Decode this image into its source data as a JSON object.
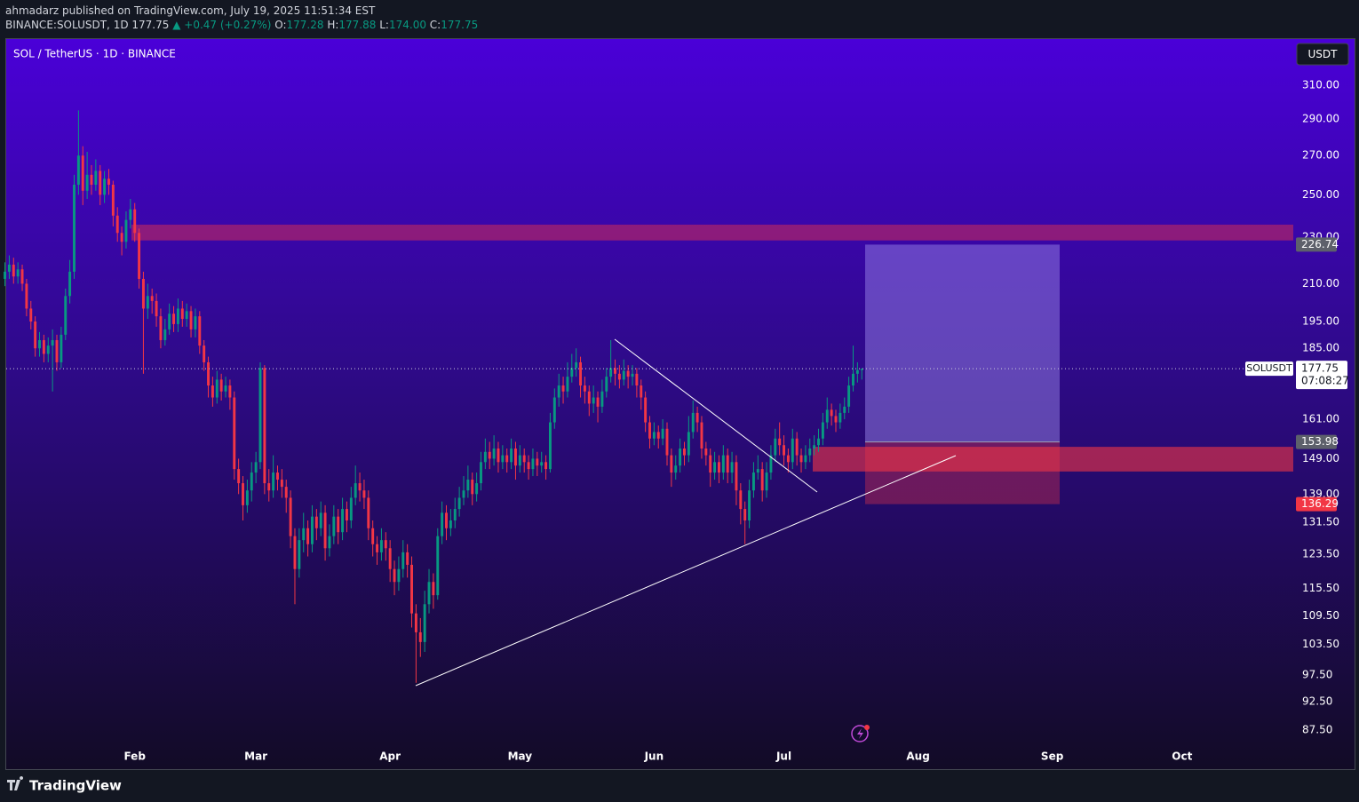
{
  "header": {
    "published": "ahmadarz published on TradingView.com, July 19, 2025 11:51:34 EST",
    "symbol": "BINANCE:SOLUSDT, 1D",
    "last": "177.75",
    "change": "▲ +0.47 (+0.27%)",
    "ohlc": [
      {
        "label": "O:",
        "value": "177.28"
      },
      {
        "label": "H:",
        "value": "177.88"
      },
      {
        "label": "L:",
        "value": "174.00"
      },
      {
        "label": "C:",
        "value": "177.75"
      }
    ]
  },
  "footer": {
    "brand": "TradingView"
  },
  "chart_data": {
    "type": "candlestick",
    "title": "SOL / TetherUS · 1D · BINANCE",
    "currency": "USDT",
    "symbol_label": "SOLUSDT",
    "countdown": "07:08:27",
    "log_scale": true,
    "grid": false,
    "up_color": "#089981",
    "down_color": "#f23645",
    "xlim": [
      1.3,
      298.7
    ],
    "xticks": [
      {
        "value": 31,
        "label": "Feb"
      },
      {
        "value": 59,
        "label": "Mar"
      },
      {
        "value": 90,
        "label": "Apr"
      },
      {
        "value": 120,
        "label": "May"
      },
      {
        "value": 151,
        "label": "Jun"
      },
      {
        "value": 181,
        "label": "Jul"
      },
      {
        "value": 212,
        "label": "Aug"
      },
      {
        "value": 243,
        "label": "Sep"
      },
      {
        "value": 273,
        "label": "Oct"
      }
    ],
    "ylim": [
      85.1,
      339.3
    ],
    "yticks": [
      {
        "value": 310,
        "label": "310.00"
      },
      {
        "value": 290,
        "label": "290.00"
      },
      {
        "value": 270,
        "label": "270.00"
      },
      {
        "value": 250,
        "label": "250.00"
      },
      {
        "value": 230,
        "label": "230.00"
      },
      {
        "value": 210,
        "label": "210.00"
      },
      {
        "value": 195,
        "label": "195.00"
      },
      {
        "value": 185,
        "label": "185.00"
      },
      {
        "value": 161,
        "label": "161.00"
      },
      {
        "value": 149,
        "label": "149.00"
      },
      {
        "value": 139,
        "label": "139.00"
      },
      {
        "value": 131.5,
        "label": "131.50"
      },
      {
        "value": 123.5,
        "label": "123.50"
      },
      {
        "value": 115.5,
        "label": "115.50"
      },
      {
        "value": 109.5,
        "label": "109.50"
      },
      {
        "value": 103.5,
        "label": "103.50"
      },
      {
        "value": 97.5,
        "label": "97.50"
      },
      {
        "value": 92.5,
        "label": "92.50"
      },
      {
        "value": 87.5,
        "label": "87.50"
      }
    ],
    "zones": [
      {
        "from": 228.6,
        "to": 235.8
      },
      {
        "from": 145.3,
        "to": 152.5
      }
    ],
    "position": {
      "target": 226.74,
      "entry": 153.98,
      "stop": 136.29
    },
    "x": [
      1,
      2,
      3,
      4,
      5,
      6,
      7,
      8,
      9,
      10,
      11,
      12,
      13,
      14,
      15,
      16,
      17,
      18,
      19,
      20,
      21,
      22,
      23,
      24,
      25,
      26,
      27,
      28,
      29,
      30,
      31,
      32,
      33,
      34,
      35,
      36,
      37,
      38,
      39,
      40,
      41,
      42,
      43,
      44,
      45,
      46,
      47,
      48,
      49,
      50,
      51,
      52,
      53,
      54,
      55,
      56,
      57,
      58,
      59,
      60,
      61,
      62,
      63,
      64,
      65,
      66,
      67,
      68,
      69,
      70,
      71,
      72,
      73,
      74,
      75,
      76,
      77,
      78,
      79,
      80,
      81,
      82,
      83,
      84,
      85,
      86,
      87,
      88,
      89,
      90,
      91,
      92,
      93,
      94,
      95,
      96,
      97,
      98,
      99,
      100,
      101,
      102,
      103,
      104,
      105,
      106,
      107,
      108,
      109,
      110,
      111,
      112,
      113,
      114,
      115,
      116,
      117,
      118,
      119,
      120,
      121,
      122,
      123,
      124,
      125,
      126,
      127,
      128,
      129,
      130,
      131,
      132,
      133,
      134,
      135,
      136,
      137,
      138,
      139,
      140,
      141,
      142,
      143,
      144,
      145,
      146,
      147,
      148,
      149,
      150,
      151,
      152,
      153,
      154,
      155,
      156,
      157,
      158,
      159,
      160,
      161,
      162,
      163,
      164,
      165,
      166,
      167,
      168,
      169,
      170,
      171,
      172,
      173,
      174,
      175,
      176,
      177,
      178,
      179,
      180,
      181,
      182,
      183,
      184,
      185,
      186,
      187,
      188,
      189,
      190,
      191,
      192,
      193,
      194,
      195,
      196,
      197,
      198,
      199
    ],
    "candles": [
      [
        212,
        219,
        209,
        215
      ],
      [
        215,
        222,
        212,
        218
      ],
      [
        218,
        221,
        210,
        213
      ],
      [
        213,
        219,
        210,
        216
      ],
      [
        216,
        218,
        207,
        210
      ],
      [
        210,
        212,
        197,
        200
      ],
      [
        200,
        203,
        192,
        195
      ],
      [
        195,
        197,
        182,
        185
      ],
      [
        185,
        191,
        182,
        188
      ],
      [
        188,
        190,
        180,
        183
      ],
      [
        183,
        189,
        180,
        186
      ],
      [
        186,
        192,
        170,
        188
      ],
      [
        188,
        190,
        177,
        180
      ],
      [
        180,
        193,
        178,
        190
      ],
      [
        190,
        208,
        188,
        205
      ],
      [
        205,
        220,
        202,
        215
      ],
      [
        215,
        260,
        212,
        255
      ],
      [
        255,
        295,
        250,
        270
      ],
      [
        270,
        275,
        245,
        252
      ],
      [
        252,
        272,
        248,
        260
      ],
      [
        260,
        265,
        250,
        255
      ],
      [
        255,
        268,
        252,
        262
      ],
      [
        262,
        265,
        245,
        250
      ],
      [
        250,
        262,
        246,
        258
      ],
      [
        258,
        263,
        250,
        255
      ],
      [
        255,
        257,
        235,
        240
      ],
      [
        240,
        244,
        228,
        232
      ],
      [
        232,
        235,
        222,
        228
      ],
      [
        228,
        242,
        225,
        238
      ],
      [
        238,
        248,
        234,
        243
      ],
      [
        243,
        246,
        228,
        232
      ],
      [
        232,
        234,
        208,
        212
      ],
      [
        212,
        215,
        176,
        200
      ],
      [
        200,
        210,
        196,
        205
      ],
      [
        205,
        208,
        198,
        203
      ],
      [
        203,
        206,
        193,
        197
      ],
      [
        197,
        200,
        185,
        188
      ],
      [
        188,
        196,
        186,
        192
      ],
      [
        192,
        202,
        190,
        198
      ],
      [
        198,
        201,
        191,
        194
      ],
      [
        194,
        204,
        191,
        200
      ],
      [
        200,
        203,
        193,
        196
      ],
      [
        196,
        202,
        193,
        199
      ],
      [
        199,
        201,
        189,
        192
      ],
      [
        192,
        200,
        189,
        197
      ],
      [
        197,
        199,
        183,
        186
      ],
      [
        186,
        188,
        177,
        180
      ],
      [
        180,
        182,
        168,
        172
      ],
      [
        172,
        175,
        165,
        168
      ],
      [
        168,
        177,
        166,
        174
      ],
      [
        174,
        176,
        167,
        170
      ],
      [
        170,
        175,
        168,
        172
      ],
      [
        172,
        174,
        164,
        168
      ],
      [
        168,
        170,
        143,
        146
      ],
      [
        146,
        149,
        139,
        142
      ],
      [
        142,
        144,
        132,
        136
      ],
      [
        136,
        143,
        134,
        140
      ],
      [
        140,
        148,
        137,
        145
      ],
      [
        145,
        151,
        142,
        148
      ],
      [
        148,
        180,
        146,
        178
      ],
      [
        178,
        179,
        139,
        142
      ],
      [
        142,
        146,
        137,
        140
      ],
      [
        140,
        150,
        138,
        145
      ],
      [
        145,
        147,
        140,
        143
      ],
      [
        143,
        146,
        138,
        141
      ],
      [
        141,
        143,
        134,
        138
      ],
      [
        138,
        140,
        125,
        128
      ],
      [
        128,
        130,
        112,
        120
      ],
      [
        120,
        130,
        118,
        127
      ],
      [
        127,
        134,
        124,
        130
      ],
      [
        130,
        132,
        123,
        126
      ],
      [
        126,
        136,
        124,
        133
      ],
      [
        133,
        135,
        127,
        130
      ],
      [
        130,
        137,
        128,
        134
      ],
      [
        134,
        136,
        122,
        125
      ],
      [
        125,
        131,
        123,
        128
      ],
      [
        128,
        136,
        126,
        133
      ],
      [
        133,
        135,
        126,
        129
      ],
      [
        129,
        138,
        127,
        135
      ],
      [
        135,
        137,
        129,
        132
      ],
      [
        132,
        141,
        130,
        138
      ],
      [
        138,
        147,
        136,
        142
      ],
      [
        142,
        145,
        137,
        140
      ],
      [
        140,
        143,
        135,
        138
      ],
      [
        138,
        140,
        127,
        130
      ],
      [
        130,
        132,
        123,
        126
      ],
      [
        126,
        128,
        121,
        124
      ],
      [
        124,
        130,
        122,
        127
      ],
      [
        127,
        129,
        122,
        125
      ],
      [
        125,
        127,
        117,
        120
      ],
      [
        120,
        122,
        114,
        117
      ],
      [
        117,
        123,
        115,
        120
      ],
      [
        120,
        127,
        118,
        124
      ],
      [
        124,
        126,
        118,
        121
      ],
      [
        121,
        123,
        107,
        110
      ],
      [
        110,
        112,
        96,
        106
      ],
      [
        106,
        109,
        101,
        104
      ],
      [
        104,
        115,
        102,
        112
      ],
      [
        112,
        120,
        110,
        117
      ],
      [
        117,
        119,
        111,
        114
      ],
      [
        114,
        130,
        113,
        128
      ],
      [
        128,
        137,
        126,
        134
      ],
      [
        134,
        136,
        127,
        130
      ],
      [
        130,
        135,
        128,
        132
      ],
      [
        132,
        138,
        130,
        135
      ],
      [
        135,
        141,
        133,
        138
      ],
      [
        138,
        144,
        136,
        140
      ],
      [
        140,
        147,
        138,
        143
      ],
      [
        143,
        145,
        136,
        139
      ],
      [
        139,
        145,
        137,
        142
      ],
      [
        142,
        151,
        140,
        148
      ],
      [
        148,
        155,
        146,
        151
      ],
      [
        151,
        154,
        146,
        149
      ],
      [
        149,
        156,
        147,
        152
      ],
      [
        152,
        154,
        145,
        148
      ],
      [
        148,
        153,
        146,
        150
      ],
      [
        150,
        152,
        145,
        148
      ],
      [
        148,
        155,
        146,
        152
      ],
      [
        152,
        154,
        143,
        147
      ],
      [
        147,
        153,
        145,
        150
      ],
      [
        150,
        152,
        145,
        148
      ],
      [
        148,
        150,
        143,
        146
      ],
      [
        146,
        152,
        144,
        149
      ],
      [
        149,
        151,
        144,
        147
      ],
      [
        147,
        151,
        145,
        148
      ],
      [
        148,
        150,
        143,
        146
      ],
      [
        146,
        163,
        145,
        160
      ],
      [
        160,
        171,
        158,
        168
      ],
      [
        168,
        176,
        165,
        172
      ],
      [
        172,
        175,
        166,
        170
      ],
      [
        170,
        180,
        168,
        175
      ],
      [
        175,
        183,
        173,
        178
      ],
      [
        178,
        185,
        175,
        180
      ],
      [
        180,
        182,
        168,
        172
      ],
      [
        172,
        175,
        166,
        170
      ],
      [
        170,
        172,
        162,
        166
      ],
      [
        166,
        172,
        163,
        168
      ],
      [
        168,
        170,
        160,
        165
      ],
      [
        165,
        174,
        163,
        170
      ],
      [
        170,
        178,
        168,
        175
      ],
      [
        175,
        188,
        173,
        178
      ],
      [
        178,
        181,
        172,
        176
      ],
      [
        176,
        179,
        171,
        174
      ],
      [
        174,
        181,
        172,
        177
      ],
      [
        177,
        179,
        171,
        175
      ],
      [
        175,
        179,
        172,
        176
      ],
      [
        176,
        178,
        168,
        172
      ],
      [
        172,
        174,
        164,
        168
      ],
      [
        168,
        170,
        157,
        160
      ],
      [
        160,
        162,
        152,
        155
      ],
      [
        155,
        160,
        153,
        157
      ],
      [
        157,
        159,
        152,
        155
      ],
      [
        155,
        161,
        153,
        158
      ],
      [
        158,
        160,
        147,
        150
      ],
      [
        150,
        152,
        141,
        145
      ],
      [
        145,
        150,
        143,
        147
      ],
      [
        147,
        155,
        145,
        152
      ],
      [
        152,
        154,
        147,
        150
      ],
      [
        150,
        162,
        148,
        157
      ],
      [
        157,
        167,
        155,
        163
      ],
      [
        163,
        165,
        157,
        160
      ],
      [
        160,
        162,
        149,
        152
      ],
      [
        152,
        154,
        147,
        150
      ],
      [
        150,
        152,
        141,
        145
      ],
      [
        145,
        151,
        143,
        148
      ],
      [
        148,
        150,
        142,
        145
      ],
      [
        145,
        153,
        143,
        150
      ],
      [
        150,
        152,
        142,
        145
      ],
      [
        145,
        151,
        142,
        148
      ],
      [
        148,
        150,
        136,
        140
      ],
      [
        140,
        142,
        131,
        135
      ],
      [
        135,
        137,
        126,
        132
      ],
      [
        132,
        143,
        130,
        140
      ],
      [
        140,
        148,
        138,
        145
      ],
      [
        145,
        150,
        143,
        146
      ],
      [
        146,
        148,
        137,
        140
      ],
      [
        140,
        148,
        138,
        145
      ],
      [
        145,
        153,
        143,
        150
      ],
      [
        150,
        158,
        148,
        155
      ],
      [
        155,
        160,
        150,
        153
      ],
      [
        153,
        156,
        147,
        150
      ],
      [
        150,
        152,
        145,
        148
      ],
      [
        148,
        158,
        146,
        155
      ],
      [
        155,
        157,
        147,
        150
      ],
      [
        150,
        152,
        145,
        148
      ],
      [
        148,
        153,
        146,
        150
      ],
      [
        150,
        155,
        148,
        152
      ],
      [
        152,
        156,
        150,
        153
      ],
      [
        153,
        158,
        151,
        155
      ],
      [
        155,
        163,
        153,
        160
      ],
      [
        160,
        168,
        158,
        164
      ],
      [
        164,
        166,
        159,
        162
      ],
      [
        162,
        164,
        157,
        160
      ],
      [
        160,
        166,
        158,
        163
      ],
      [
        163,
        168,
        161,
        165
      ],
      [
        165,
        175,
        163,
        172
      ],
      [
        172,
        186,
        170,
        176
      ],
      [
        176,
        180,
        173,
        177.28
      ],
      [
        177.28,
        177.88,
        174,
        177.75
      ]
    ]
  }
}
